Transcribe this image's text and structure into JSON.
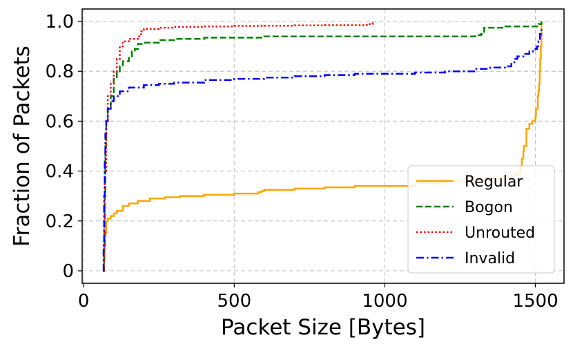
{
  "chart_data": {
    "type": "line",
    "title": "",
    "xlabel": "Packet Size [Bytes]",
    "ylabel": "Fraction of Packets",
    "xlim": [
      -5,
      1595
    ],
    "ylim": [
      -0.05,
      1.05
    ],
    "xticks": [
      0,
      500,
      1000,
      1500
    ],
    "xtick_labels": [
      "0",
      "500",
      "1000",
      "1500"
    ],
    "yticks": [
      0,
      0.2,
      0.4,
      0.6,
      0.8,
      1.0
    ],
    "ytick_labels": [
      "0",
      "0.2",
      "0.4",
      "0.6",
      "0.8",
      "1.0"
    ],
    "grid": true,
    "legend_position": "bottom-right",
    "series": [
      {
        "name": "Regular",
        "color": "#ffa500",
        "dash": "solid",
        "x": [
          64,
          68,
          70,
          72,
          75,
          80,
          90,
          100,
          110,
          130,
          150,
          180,
          220,
          270,
          320,
          400,
          500,
          580,
          590,
          600,
          700,
          800,
          900,
          1000,
          1100,
          1200,
          1300,
          1400,
          1430,
          1440,
          1450,
          1455,
          1460,
          1462,
          1470,
          1480,
          1490,
          1495,
          1500,
          1502,
          1505,
          1508,
          1510,
          1512,
          1514,
          1516,
          1518,
          1520
        ],
        "y": [
          0.0,
          0.05,
          0.1,
          0.15,
          0.2,
          0.21,
          0.22,
          0.23,
          0.24,
          0.26,
          0.27,
          0.28,
          0.29,
          0.295,
          0.3,
          0.305,
          0.31,
          0.315,
          0.32,
          0.325,
          0.33,
          0.335,
          0.34,
          0.34,
          0.35,
          0.36,
          0.37,
          0.38,
          0.385,
          0.39,
          0.42,
          0.45,
          0.48,
          0.5,
          0.57,
          0.59,
          0.6,
          0.6,
          0.62,
          0.65,
          0.65,
          0.7,
          0.72,
          0.75,
          0.8,
          0.85,
          0.9,
          1.0
        ]
      },
      {
        "name": "Bogon",
        "color": "#008000",
        "dash": "dashed",
        "x": [
          64,
          68,
          70,
          72,
          75,
          80,
          90,
          100,
          110,
          120,
          130,
          150,
          160,
          170,
          180,
          200,
          250,
          300,
          400,
          500,
          600,
          700,
          800,
          900,
          1000,
          1100,
          1200,
          1300,
          1320,
          1330,
          1400,
          1500,
          1510,
          1520
        ],
        "y": [
          0.0,
          0.1,
          0.3,
          0.5,
          0.6,
          0.65,
          0.7,
          0.77,
          0.8,
          0.82,
          0.84,
          0.86,
          0.88,
          0.89,
          0.91,
          0.915,
          0.925,
          0.93,
          0.935,
          0.935,
          0.94,
          0.94,
          0.94,
          0.94,
          0.94,
          0.94,
          0.94,
          0.945,
          0.95,
          0.975,
          0.98,
          0.98,
          0.99,
          1.0
        ]
      },
      {
        "name": "Unrouted",
        "color": "#ff0000",
        "dash": "dotted",
        "x": [
          64,
          68,
          70,
          75,
          80,
          90,
          100,
          110,
          120,
          130,
          150,
          180,
          190,
          200,
          250,
          300,
          400,
          500,
          600,
          700,
          800,
          900,
          940,
          960
        ],
        "y": [
          0.0,
          0.2,
          0.4,
          0.6,
          0.7,
          0.75,
          0.8,
          0.85,
          0.9,
          0.92,
          0.93,
          0.94,
          0.96,
          0.97,
          0.975,
          0.978,
          0.98,
          0.982,
          0.983,
          0.984,
          0.985,
          0.985,
          0.99,
          1.0
        ]
      },
      {
        "name": "Invalid",
        "color": "#0000ff",
        "dash": "dashdot",
        "x": [
          64,
          66,
          68,
          70,
          72,
          75,
          80,
          90,
          100,
          120,
          150,
          200,
          250,
          300,
          400,
          500,
          600,
          700,
          800,
          900,
          1000,
          1100,
          1200,
          1300,
          1350,
          1400,
          1420,
          1430,
          1440,
          1460,
          1480,
          1500,
          1505,
          1510,
          1515,
          1520
        ],
        "y": [
          0.0,
          0.1,
          0.3,
          0.45,
          0.55,
          0.6,
          0.65,
          0.68,
          0.7,
          0.72,
          0.735,
          0.745,
          0.75,
          0.755,
          0.765,
          0.77,
          0.775,
          0.78,
          0.785,
          0.79,
          0.79,
          0.795,
          0.8,
          0.81,
          0.815,
          0.82,
          0.83,
          0.85,
          0.86,
          0.87,
          0.88,
          0.89,
          0.9,
          0.92,
          0.95,
          0.98
        ]
      }
    ]
  }
}
